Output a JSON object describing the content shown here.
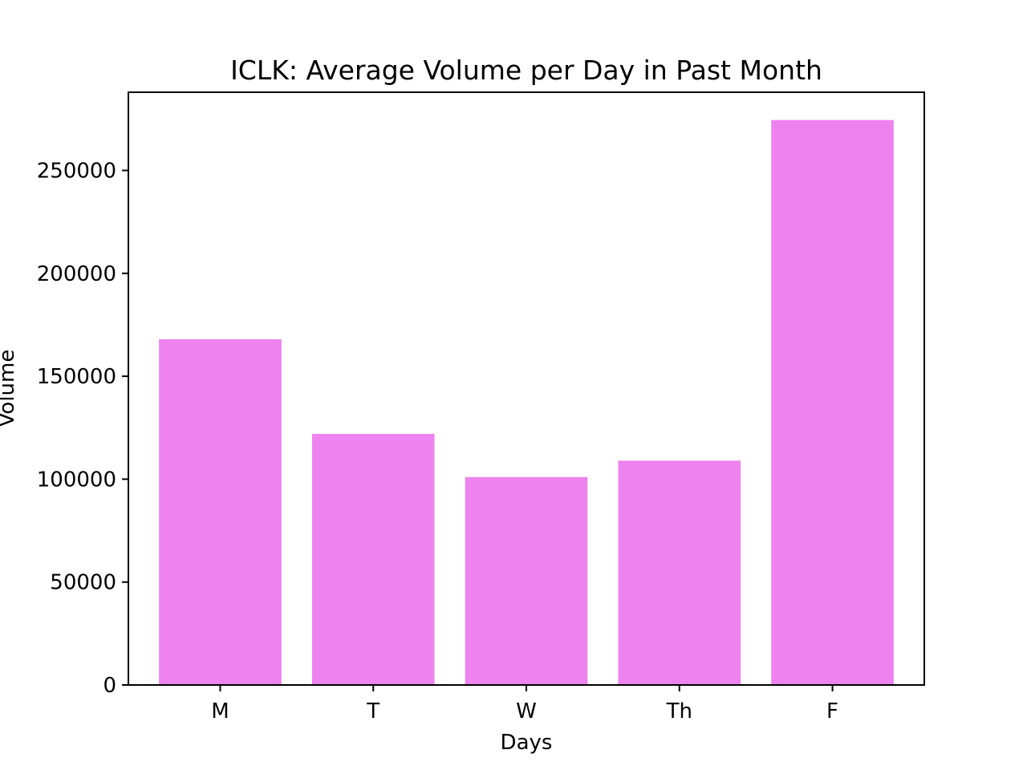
{
  "chart_data": {
    "type": "bar",
    "title": "ICLK: Average Volume per Day in Past Month",
    "xlabel": "Days",
    "ylabel": "Volume",
    "categories": [
      "M",
      "T",
      "W",
      "Th",
      "F"
    ],
    "values": [
      168000,
      122000,
      101000,
      109000,
      274500
    ],
    "ylim": [
      0,
      288000
    ],
    "yticks": [
      0,
      50000,
      100000,
      150000,
      200000,
      250000
    ],
    "ytick_labels": [
      "0",
      "50000",
      "100000",
      "150000",
      "200000",
      "250000"
    ],
    "bar_color": "#ee82ee",
    "grid": false,
    "legend": "none"
  }
}
